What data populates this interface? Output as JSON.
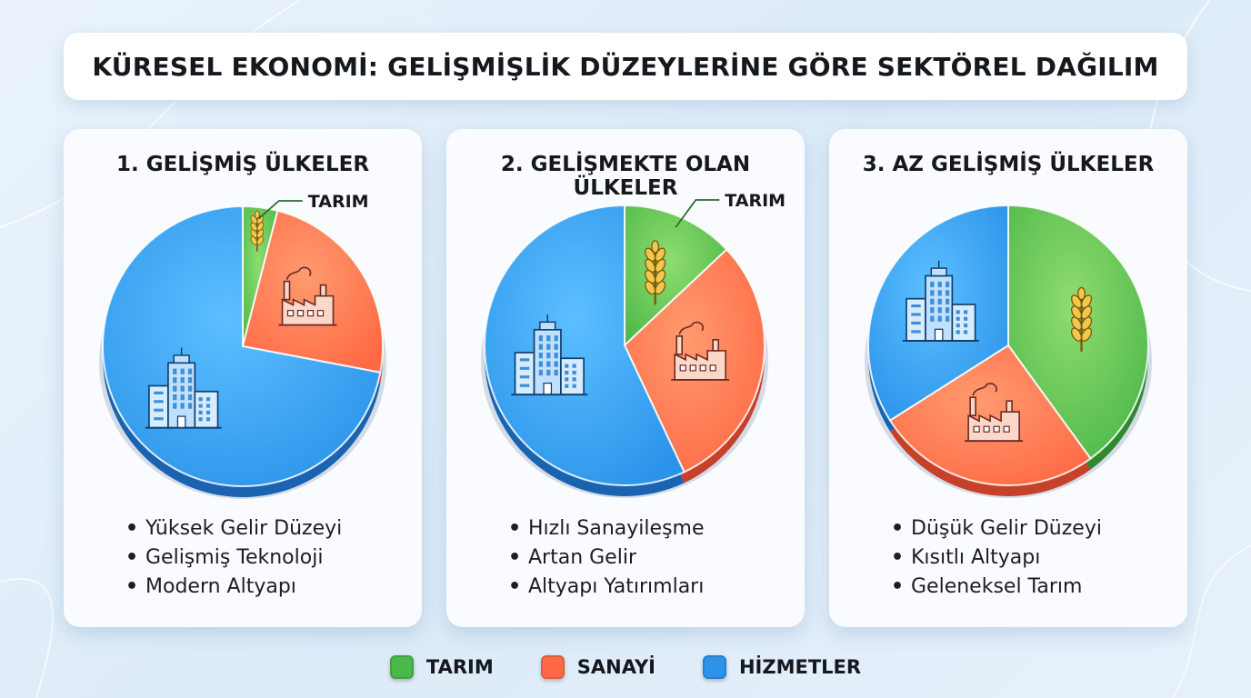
{
  "title": "KÜRESEL EKONOMİ: GELİŞMİŞLİK DÜZEYLERİNE GÖRE SEKTÖREL DAĞILIM",
  "colors": {
    "tarim": "#4db84a",
    "sanayi": "#ff6a45",
    "hizmetler": "#2b93ea"
  },
  "legend": [
    {
      "label": "TARIM",
      "key": "tarim"
    },
    {
      "label": "SANAYİ",
      "key": "sanayi"
    },
    {
      "label": "HİZMETLER",
      "key": "hizmetler"
    }
  ],
  "cards": [
    {
      "title": "1. GELİŞMİŞ ÜLKELER",
      "bullets": [
        "Yüksek Gelir Düzeyi",
        "Gelişmiş Teknoloji",
        "Modern Altyapı"
      ]
    },
    {
      "title": "2. GELİŞMEKTE OLAN ÜLKELER",
      "bullets": [
        "Hızlı Sanayileşme",
        "Artan Gelir",
        "Altyapı Yatırımları"
      ]
    },
    {
      "title": "3. AZ GELİŞMİŞ ÜLKELER",
      "bullets": [
        "Düşük Gelir Düzeyi",
        "Kısıtlı Altyapı",
        "Geleneksel Tarım"
      ]
    }
  ],
  "chart_data": [
    {
      "type": "pie",
      "title": "1. GELİŞMİŞ ÜLKELER",
      "categories": [
        "TARIM",
        "SANAYİ",
        "HİZMETLER"
      ],
      "values": [
        4,
        24,
        72
      ],
      "annotations": [
        "TARIM"
      ]
    },
    {
      "type": "pie",
      "title": "2. GELİŞMEKTE OLAN ÜLKELER",
      "categories": [
        "TARIM",
        "SANAYİ",
        "HİZMETLER"
      ],
      "values": [
        13,
        30,
        57
      ],
      "annotations": [
        "TARIM"
      ]
    },
    {
      "type": "pie",
      "title": "3. AZ GELİŞMİŞ ÜLKELER",
      "categories": [
        "TARIM",
        "SANAYİ",
        "HİZMETLER"
      ],
      "values": [
        40,
        26,
        34
      ],
      "annotations": []
    }
  ]
}
